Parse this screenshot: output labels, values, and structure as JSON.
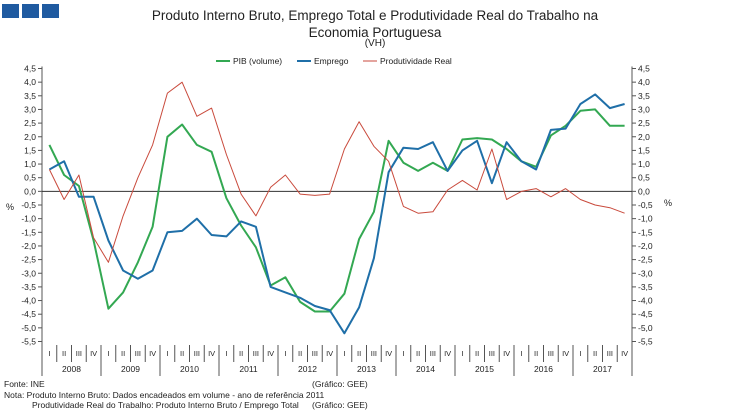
{
  "header": {
    "title_line1": "Produto Interno Bruto, Emprego Total e Produtividade Real do Trabalho na",
    "title_line2": "Economia Portuguesa",
    "subtitle": "(VH)"
  },
  "notes": {
    "source": "Fonte: INE",
    "note1": "Nota: Produto Interno Bruto: Dados encadeados em volume - ano de referência 2011",
    "note2": "Produtividade Real do Trabalho: Produto Interno Bruto / Emprego Total",
    "credit1": "(Gráfico: GEE)",
    "credit2": "(Gráfico: GEE)"
  },
  "chart_data": {
    "type": "line",
    "title": "Produto Interno Bruto, Emprego Total e Produtividade Real do Trabalho na Economia Portuguesa",
    "subtitle": "(VH)",
    "ylabel_left": "%",
    "ylabel_right": "%",
    "ylim": [
      -5.5,
      4.5
    ],
    "yticks": [
      "4,5",
      "4,0",
      "3,5",
      "3,0",
      "2,5",
      "2,0",
      "1,5",
      "1,0",
      "0,5",
      "0,0",
      "-0,5",
      "-1,0",
      "-1,5",
      "-2,0",
      "-2,5",
      "-3,0",
      "-3,5",
      "-4,0",
      "-4,5",
      "-5,0",
      "-5,5"
    ],
    "yticks_right": [
      "4,5",
      "4,0",
      "3,5",
      "3,0",
      "2,5",
      "2,0",
      "1,5",
      "1,0",
      "0,5",
      "0,0",
      "-0,5",
      "-1,0",
      "-1,5",
      "-2,0",
      "-2,5",
      "-3,0",
      "-3,5",
      "-4,0",
      "-4,5",
      "-5,0",
      "-5,5"
    ],
    "quarters": [
      "I",
      "II",
      "III",
      "IV"
    ],
    "years": [
      "2008",
      "2009",
      "2010",
      "2011",
      "2012",
      "2013",
      "2014",
      "2015",
      "2016",
      "2017"
    ],
    "legend": [
      "PIB (volume)",
      "Emprego",
      "Produtividade Real"
    ],
    "series": [
      {
        "name": "PIB (volume)",
        "color": "#33a852",
        "values": [
          1.7,
          0.6,
          0.2,
          -1.8,
          -4.3,
          -3.7,
          -2.6,
          -1.3,
          2.0,
          2.45,
          1.7,
          1.45,
          -0.25,
          -1.25,
          -2.05,
          -3.45,
          -3.15,
          -4.05,
          -4.4,
          -4.4,
          -3.75,
          -1.75,
          -0.75,
          1.85,
          1.05,
          0.75,
          1.05,
          0.75,
          1.9,
          1.95,
          1.9,
          1.55,
          1.1,
          0.9,
          2.05,
          2.4,
          2.95,
          3.0,
          2.4,
          2.4
        ]
      },
      {
        "name": "Emprego",
        "color": "#1f6fa8",
        "values": [
          0.8,
          1.1,
          -0.2,
          -0.2,
          -1.8,
          -2.9,
          -3.2,
          -2.9,
          -1.5,
          -1.45,
          -1.0,
          -1.6,
          -1.65,
          -1.1,
          -1.3,
          -3.5,
          -3.7,
          -3.9,
          -4.2,
          -4.35,
          -5.2,
          -4.25,
          -2.45,
          0.7,
          1.6,
          1.55,
          1.8,
          0.75,
          1.5,
          1.85,
          0.3,
          1.8,
          1.1,
          0.8,
          2.25,
          2.3,
          3.2,
          3.55,
          3.05,
          3.2
        ]
      },
      {
        "name": "Produtividade Real",
        "color": "#c94a3c",
        "values": [
          0.8,
          -0.3,
          0.6,
          -1.7,
          -2.6,
          -0.9,
          0.5,
          1.7,
          3.6,
          4.0,
          2.75,
          3.05,
          1.35,
          -0.1,
          -0.9,
          0.15,
          0.6,
          -0.1,
          -0.15,
          -0.1,
          1.55,
          2.55,
          1.65,
          1.1,
          -0.55,
          -0.8,
          -0.75,
          0.05,
          0.4,
          0.05,
          1.55,
          -0.3,
          0.0,
          0.1,
          -0.2,
          0.1,
          -0.3,
          -0.5,
          -0.6,
          -0.8
        ]
      }
    ]
  }
}
